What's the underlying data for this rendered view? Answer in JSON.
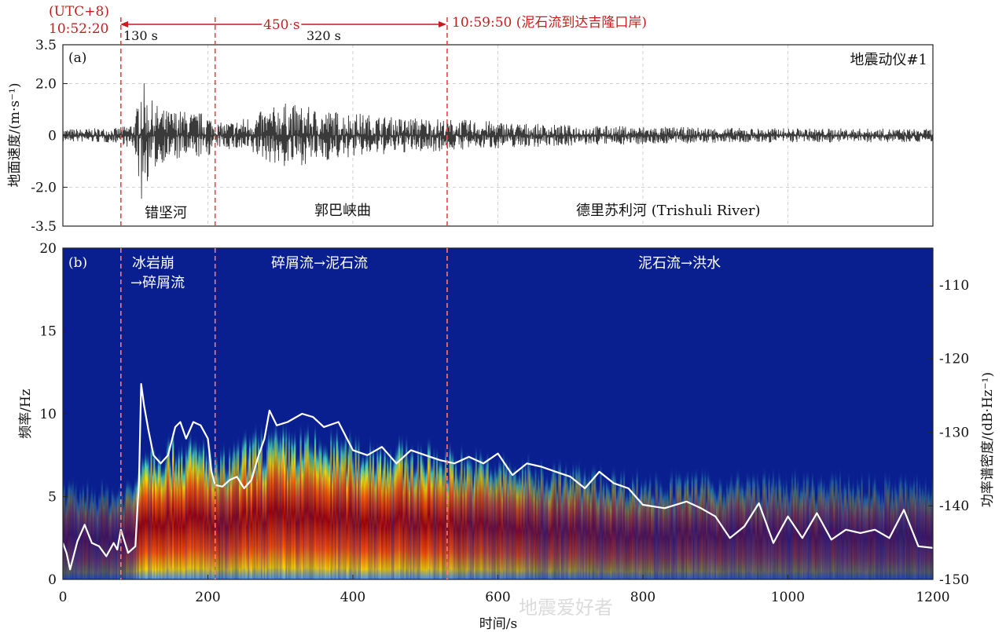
{
  "header": {
    "utc_label": "(UTC+8)",
    "start_time": "10:52:20",
    "seg1": "130 s",
    "total": "450 s",
    "seg2": "320 s",
    "end_label": "10:59:50 (泥石流到达吉隆口岸)"
  },
  "panel_a": {
    "label": "(a)",
    "station": "地震动仪#1",
    "regions": [
      "错坚河",
      "郭巴峡曲",
      "德里苏利河 (Trishuli River)"
    ]
  },
  "panel_b": {
    "label": "(b)",
    "phases": [
      "冰岩崩",
      "→碎屑流",
      "碎屑流→泥石流",
      "泥石流→洪水"
    ]
  },
  "watermark": "地震爱好者",
  "colors": {
    "accent_red": "#c41e1e",
    "dash_line": "#ff6b6b",
    "spectrogram_bg": "#0a1f8f",
    "trace": "#333333",
    "curve": "#ffffff"
  },
  "chart_data": [
    {
      "type": "line",
      "panel": "a",
      "ylabel": "地面速度/(m·s⁻¹)",
      "xlim": [
        0,
        1200
      ],
      "ylim": [
        -3.5,
        3.5
      ],
      "yticks": [
        "3.5",
        "2.0",
        "0",
        "-2.0",
        "-3.5"
      ],
      "ytick_values": [
        3.5,
        2.0,
        0,
        -2.0,
        -3.5
      ],
      "grid": true,
      "event_lines_x": [
        80,
        210,
        530
      ],
      "envelope": {
        "x": [
          0,
          80,
          100,
          108,
          115,
          125,
          140,
          160,
          180,
          200,
          210,
          220,
          240,
          270,
          290,
          300,
          320,
          340,
          360,
          380,
          400,
          430,
          460,
          500,
          530,
          560,
          600,
          650,
          700,
          800,
          900,
          1000,
          1100,
          1200
        ],
        "pos": [
          0.25,
          0.3,
          0.6,
          2.6,
          1.6,
          1.3,
          1.0,
          1.0,
          0.9,
          0.9,
          0.5,
          0.5,
          0.6,
          0.9,
          1.1,
          1.3,
          1.2,
          1.1,
          1.0,
          0.95,
          0.9,
          0.8,
          0.7,
          0.7,
          0.65,
          0.6,
          0.55,
          0.45,
          0.4,
          0.35,
          0.3,
          0.28,
          0.27,
          0.25
        ],
        "neg": [
          0.25,
          0.3,
          0.7,
          2.7,
          1.9,
          1.4,
          1.0,
          1.0,
          0.9,
          0.85,
          0.5,
          0.5,
          0.6,
          0.9,
          1.1,
          1.3,
          1.2,
          1.1,
          1.0,
          0.95,
          0.85,
          0.8,
          0.7,
          0.65,
          0.6,
          0.55,
          0.5,
          0.45,
          0.4,
          0.35,
          0.3,
          0.28,
          0.27,
          0.25
        ]
      }
    },
    {
      "type": "heatmap",
      "panel": "b",
      "xlabel": "时间/s",
      "ylabel": "频率/Hz",
      "y2label": "功率谱密度/(dB·Hz⁻¹)",
      "xlim": [
        0,
        1200
      ],
      "ylim": [
        0,
        20
      ],
      "xticks": [
        0,
        200,
        400,
        600,
        800,
        1000,
        1200
      ],
      "yticks": [
        0,
        5,
        10,
        15,
        20
      ],
      "y2lim": [
        -150,
        -105
      ],
      "y2ticks": [
        -110,
        -120,
        -130,
        -140,
        -150
      ],
      "event_lines_x": [
        80,
        210,
        530
      ],
      "energy_band": {
        "x": [
          0,
          80,
          100,
          108,
          150,
          200,
          210,
          270,
          320,
          420,
          530,
          600,
          700,
          800,
          1000,
          1200
        ],
        "intensity": [
          0.3,
          0.35,
          0.55,
          1.0,
          1.0,
          1.0,
          0.75,
          1.0,
          1.0,
          0.95,
          0.85,
          0.7,
          0.55,
          0.45,
          0.35,
          0.3
        ],
        "top_hz": [
          5.5,
          5.5,
          6.0,
          8.0,
          8.0,
          8.0,
          7.0,
          8.5,
          8.5,
          8.0,
          7.5,
          7.0,
          6.5,
          6.0,
          6.0,
          5.8
        ]
      },
      "curve": {
        "x": [
          0,
          5,
          10,
          20,
          30,
          40,
          50,
          60,
          70,
          75,
          80,
          90,
          100,
          105,
          108,
          112,
          118,
          125,
          135,
          145,
          155,
          162,
          170,
          180,
          190,
          200,
          205,
          210,
          220,
          230,
          240,
          250,
          260,
          270,
          278,
          285,
          295,
          310,
          330,
          345,
          360,
          380,
          400,
          420,
          440,
          460,
          480,
          500,
          520,
          540,
          560,
          580,
          600,
          620,
          640,
          660,
          680,
          700,
          720,
          740,
          760,
          780,
          800,
          830,
          860,
          880,
          900,
          920,
          940,
          960,
          980,
          1000,
          1020,
          1040,
          1060,
          1080,
          1100,
          1120,
          1140,
          1160,
          1180,
          1200
        ],
        "y": [
          2.2,
          1.6,
          0.6,
          2.3,
          3.3,
          2.2,
          2.0,
          1.4,
          2.2,
          1.8,
          3.0,
          1.6,
          2.0,
          6.0,
          11.8,
          10.5,
          9.0,
          7.5,
          7.0,
          7.5,
          9.2,
          9.5,
          8.5,
          9.5,
          9.3,
          8.5,
          6.5,
          5.7,
          5.6,
          6.0,
          6.2,
          5.5,
          6.0,
          7.5,
          8.5,
          10.2,
          9.3,
          9.5,
          10.0,
          9.8,
          9.2,
          9.5,
          7.8,
          7.5,
          8.0,
          7.0,
          7.8,
          7.5,
          7.2,
          7.0,
          7.4,
          7.0,
          7.6,
          6.3,
          7.0,
          6.8,
          6.5,
          6.2,
          5.5,
          6.5,
          5.8,
          5.5,
          4.5,
          4.3,
          4.7,
          4.3,
          3.8,
          2.5,
          3.2,
          4.6,
          2.2,
          3.8,
          2.5,
          4.0,
          2.4,
          3.0,
          2.8,
          3.0,
          2.5,
          4.2,
          2.0,
          1.9
        ]
      }
    }
  ]
}
